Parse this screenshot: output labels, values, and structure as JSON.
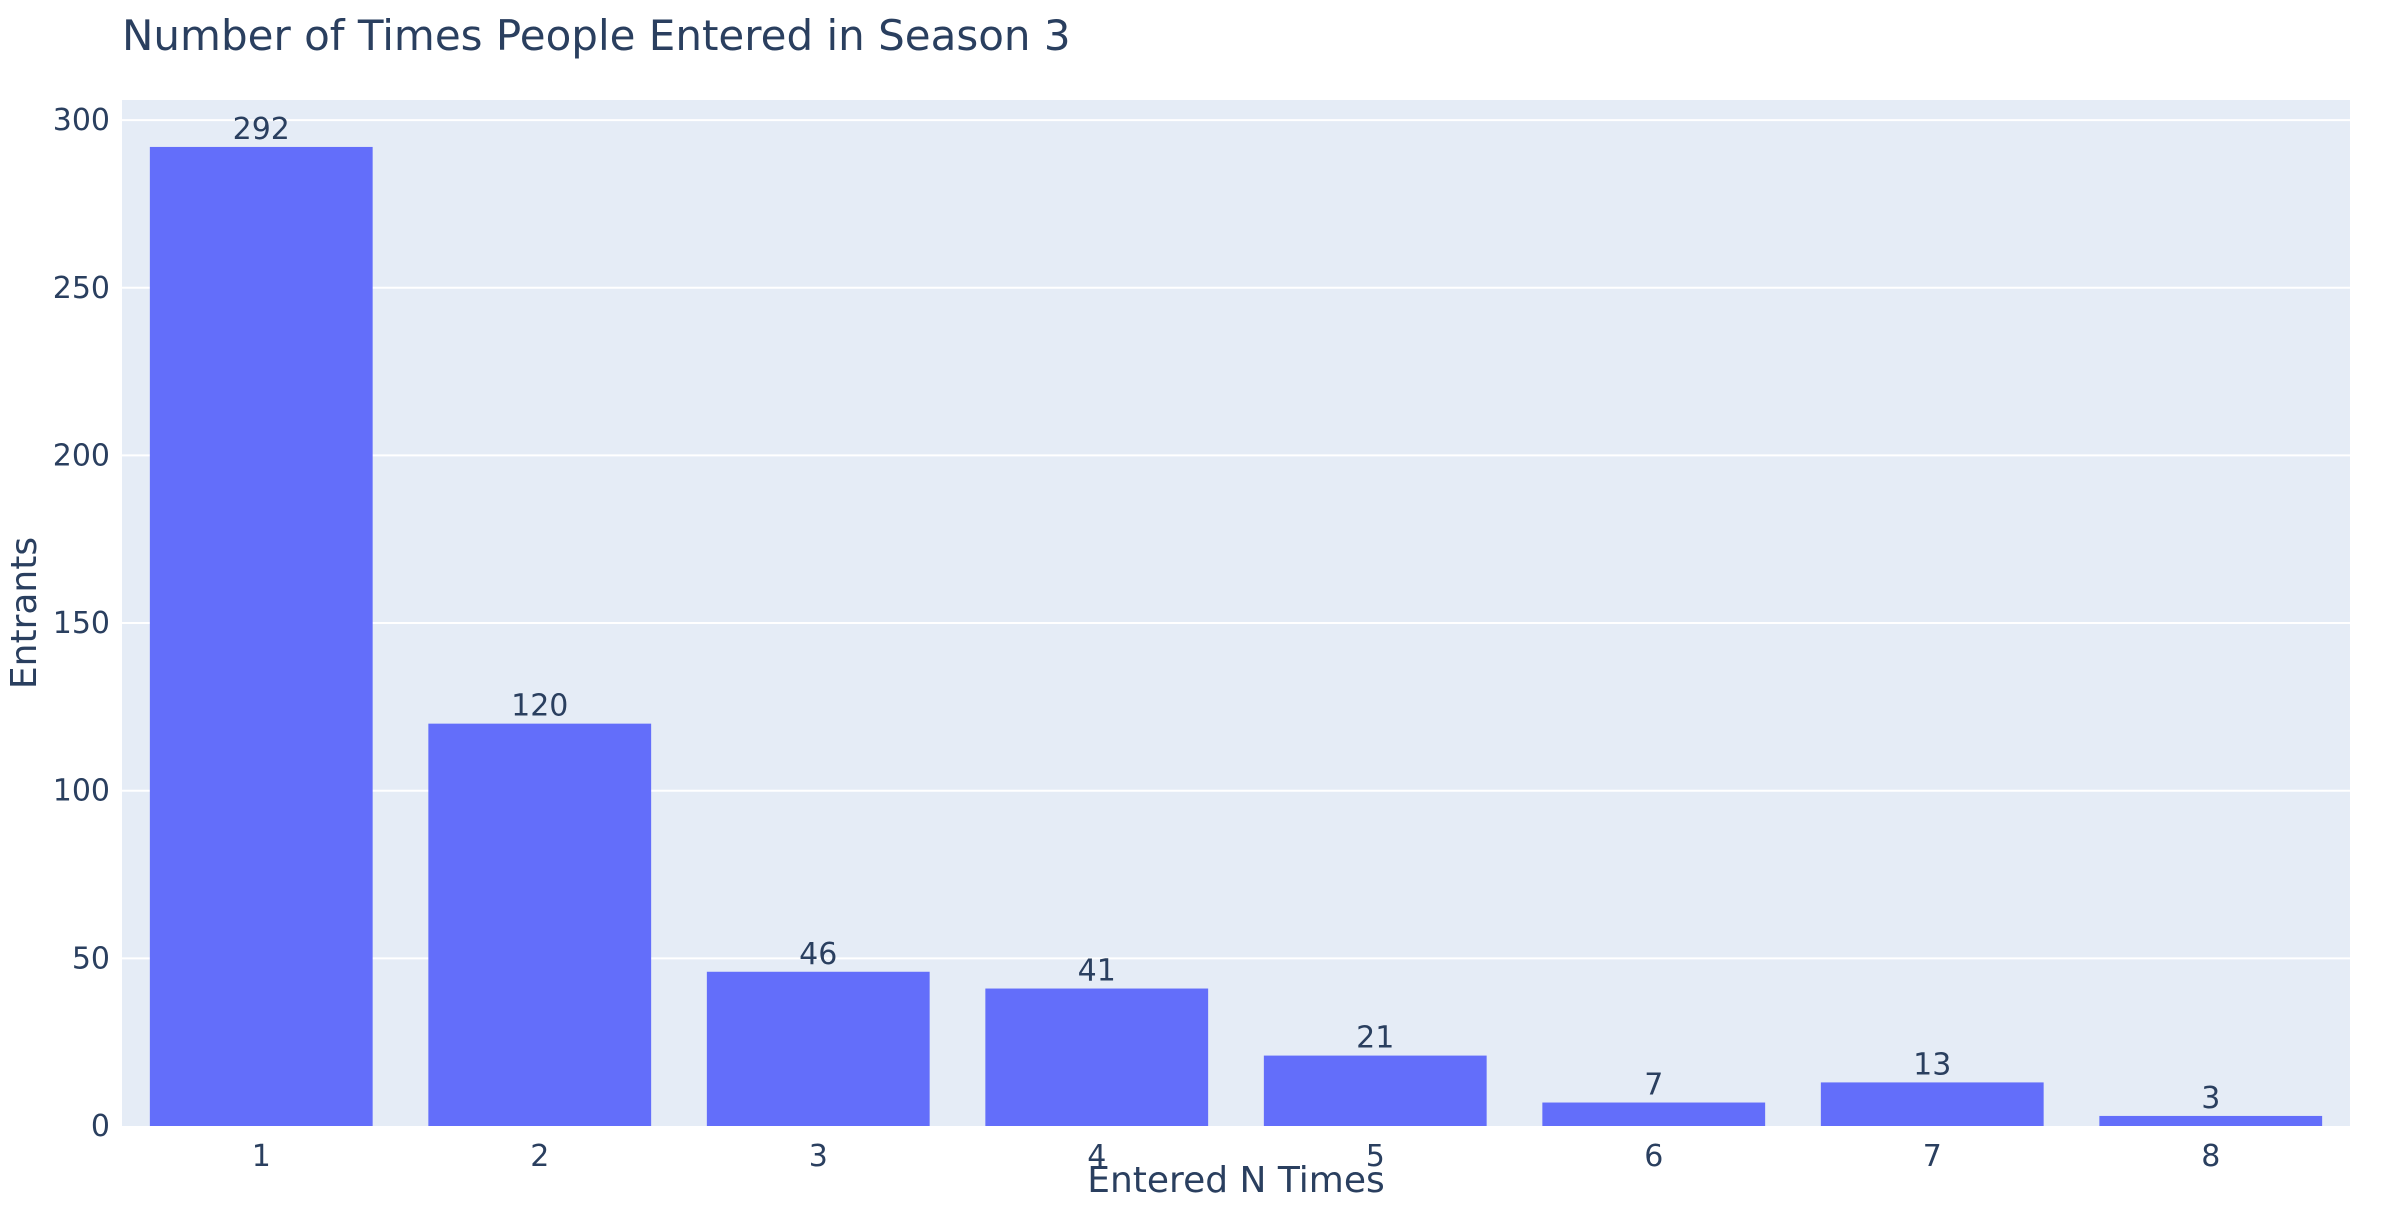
{
  "chart_data": {
    "type": "bar",
    "title": "Number of Times People Entered in Season 3",
    "xlabel": "Entered N Times",
    "ylabel": "Entrants",
    "categories": [
      "1",
      "2",
      "3",
      "4",
      "5",
      "6",
      "7",
      "8"
    ],
    "values": [
      292,
      120,
      46,
      41,
      21,
      7,
      13,
      3
    ],
    "ylim": [
      0,
      306
    ],
    "yticks": [
      0,
      50,
      100,
      150,
      200,
      250,
      300
    ],
    "grid": true,
    "legend": "none",
    "colors": {
      "bar": "#636efa",
      "plot_bg": "#e5ecf6",
      "grid": "#ffffff",
      "text": "#2a3f5f"
    }
  }
}
